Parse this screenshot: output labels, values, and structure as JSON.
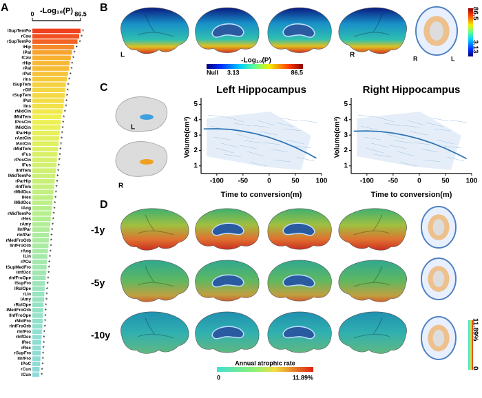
{
  "chart_data": [
    {
      "type": "hbar",
      "title": "-Log₁₀(P)",
      "categories": [
        "lSupTemPo",
        "rCau",
        "rSupTemPo",
        "lHip",
        "lPal",
        "lCau",
        "rHip",
        "rPal",
        "rPut",
        "rIns",
        "lSupTem",
        "rOlf",
        "rSupTem",
        "lPut",
        "lIns",
        "rMidCin",
        "lMidTem",
        "lPosCin",
        "lMidCin",
        "lParHip",
        "rAntCin",
        "lAntCin",
        "rMidTem",
        "rFus",
        "rPosCin",
        "lFus",
        "lInfTem",
        "lMidTemPo",
        "rParHip",
        "rInfTem",
        "rMidOcc",
        "lHes",
        "lMidOcc",
        "lAng",
        "rMidTemPo",
        "rHes",
        "rAmy",
        "lInfPar",
        "rInfPar",
        "rMedFroOrb",
        "lInfFroOrb",
        "rAng",
        "lLin",
        "rPCu",
        "lSupMedFro",
        "lInfOcc",
        "rInfFroOpe",
        "lSupFro",
        "lRolOpe",
        "rLin",
        "lAmy",
        "rRolOpe",
        "lMedFroOrb",
        "lInfFroOpe",
        "rMidFro",
        "rInfFroOrb",
        "rInfFro",
        "rInfOcc",
        "lRec",
        "rRec",
        "rSupFro",
        "lInfFro",
        "lPoC",
        "rCun",
        "lCun"
      ],
      "values": [
        86.5,
        84,
        81,
        75,
        71,
        69,
        67,
        66,
        64,
        62,
        60,
        59,
        58,
        57,
        56,
        54,
        52,
        51,
        50,
        49,
        48,
        47,
        46,
        45,
        44,
        43,
        42,
        41,
        40,
        39,
        38,
        37,
        36,
        35,
        34,
        33,
        32,
        31,
        30,
        29.5,
        29,
        28,
        27,
        26,
        25.5,
        25,
        24,
        23,
        22,
        21.5,
        21,
        20,
        19.5,
        19,
        18.5,
        18,
        17,
        16.5,
        16,
        15.5,
        15,
        14.5,
        14,
        13,
        12.5
      ],
      "annotation": "*",
      "colormap": [
        "#8cc8f0",
        "#90e0d0",
        "#b8f08c",
        "#f0f050",
        "#f8b030",
        "#f04020"
      ],
      "xlim": [
        0,
        86.5
      ],
      "xticks": [
        0,
        86.5
      ]
    },
    {
      "type": "line",
      "title": "Left Hippocampus",
      "x_label": "Time to conversion(m)",
      "y_label": "Volume(cm³)",
      "x": [
        -125,
        -100,
        -75,
        -50,
        -25,
        0,
        25,
        50,
        75,
        90
      ],
      "values": [
        3.4,
        3.41,
        3.37,
        3.25,
        3.08,
        2.85,
        2.55,
        2.2,
        1.78,
        1.5
      ],
      "color": "#2e75b6",
      "xlim": [
        -130,
        100
      ],
      "xticks": [
        -100,
        -50,
        0,
        50,
        100
      ],
      "ylim": [
        0.5,
        5.2
      ],
      "yticks": [
        1,
        2,
        3,
        4,
        5
      ]
    },
    {
      "type": "line",
      "title": "Right Hippocampus",
      "x_label": "Time to conversion(m)",
      "y_label": "Volume(cm³)",
      "x": [
        -125,
        -100,
        -75,
        -50,
        -25,
        0,
        25,
        50,
        75,
        90
      ],
      "values": [
        3.25,
        3.27,
        3.23,
        3.13,
        2.97,
        2.75,
        2.47,
        2.13,
        1.73,
        1.47
      ],
      "color": "#2e75b6",
      "xlim": [
        -130,
        100
      ],
      "xticks": [
        -100,
        -50,
        0,
        50,
        100
      ],
      "ylim": [
        0.5,
        5.2
      ],
      "yticks": [
        1,
        2,
        3,
        4,
        5
      ]
    }
  ],
  "panels": [
    "A",
    "B",
    "C",
    "D"
  ],
  "sides": {
    "left": "L",
    "right": "R"
  },
  "colorbar_p": {
    "null": "Null",
    "min": "3.13",
    "max": "86.5",
    "label": "-Log₁₀(P)"
  },
  "colorbar_rate": {
    "min": "0",
    "max": "11.89%",
    "label": "Annual atrophic rate"
  },
  "rows": [
    "-1y",
    "-5y",
    "-10y"
  ]
}
